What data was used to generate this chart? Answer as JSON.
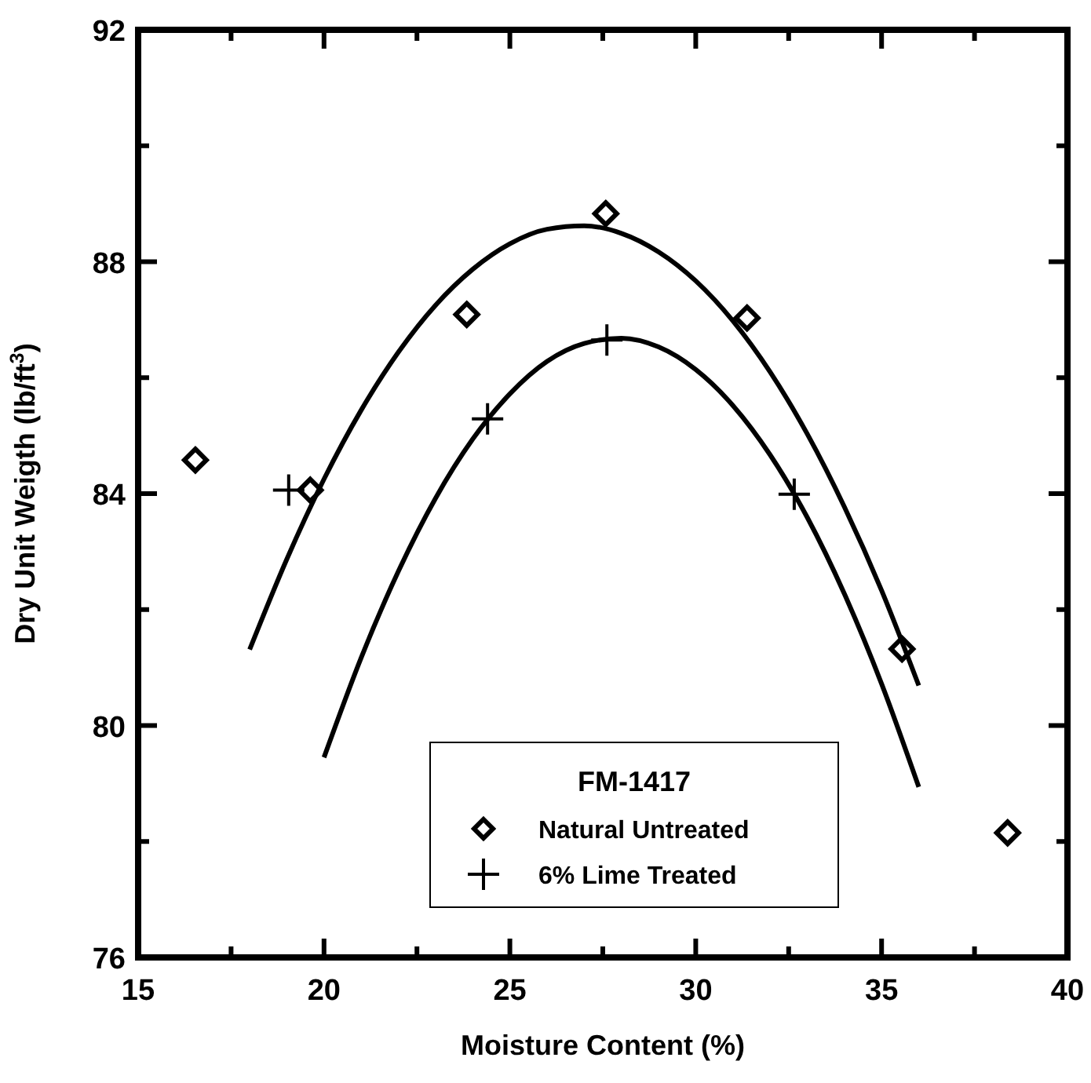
{
  "chart_data": {
    "type": "scatter",
    "xlabel": "Moisture Content (%)",
    "ylabel": "Dry Unit Weigth (lb/ft$^{3}$)",
    "legend_title": "FM-1417",
    "legend": "bottom",
    "grid": false,
    "xlim": [
      15,
      40
    ],
    "ylim": [
      76,
      92
    ],
    "xticks": [
      15,
      {
        "value": 17.5,
        "label": null
      },
      20,
      {
        "value": 22.5,
        "label": null
      },
      25,
      {
        "value": 27.5,
        "label": null
      },
      30,
      {
        "value": 32.5,
        "label": null
      },
      35,
      {
        "value": 37.5,
        "label": null
      },
      40
    ],
    "yticks": [
      76,
      {
        "value": 78,
        "label": null
      },
      80,
      {
        "value": 82,
        "label": null
      },
      84,
      {
        "value": 86,
        "label": null
      },
      88,
      {
        "value": 90,
        "label": null
      },
      92
    ],
    "series": [
      {
        "name": "Natural Untreated",
        "marker": "diamond",
        "color": "#000000",
        "x": [
          16.54,
          19.63,
          23.84,
          27.58,
          31.38,
          35.55,
          38.39
        ],
        "values": [
          84.58,
          84.06,
          87.09,
          88.83,
          87.03,
          81.32,
          78.15
        ]
      },
      {
        "name": "6% Lime Treated",
        "marker": "cross",
        "color": "#000000",
        "x": [
          19.05,
          24.4,
          27.61,
          32.65
        ],
        "values": [
          84.06,
          85.29,
          86.65,
          83.99
        ]
      },
      {
        "type": "line",
        "marker": "none",
        "line_style": "solid",
        "color": "#000000",
        "x": [
          18,
          19,
          20,
          21,
          22,
          23,
          24,
          25,
          26,
          27,
          28,
          29,
          30,
          31,
          32,
          33,
          34,
          35,
          36
        ],
        "values": [
          81.31,
          82.87,
          84.25,
          85.44,
          86.44,
          87.25,
          87.87,
          88.31,
          88.56,
          88.62,
          88.49,
          88.17,
          87.67,
          86.98,
          86.1,
          85.03,
          83.77,
          82.33,
          80.69
        ]
      },
      {
        "type": "line",
        "marker": "none",
        "line_style": "solid",
        "color": "#000000",
        "x": [
          20,
          21,
          22,
          23,
          24,
          25,
          26,
          27,
          28,
          29,
          30,
          31,
          32,
          33,
          34,
          35,
          36
        ],
        "values": [
          79.45,
          81.17,
          82.66,
          83.92,
          84.94,
          85.72,
          86.28,
          86.59,
          86.68,
          86.53,
          86.14,
          85.52,
          84.67,
          83.59,
          82.27,
          80.72,
          78.94
        ]
      }
    ]
  }
}
